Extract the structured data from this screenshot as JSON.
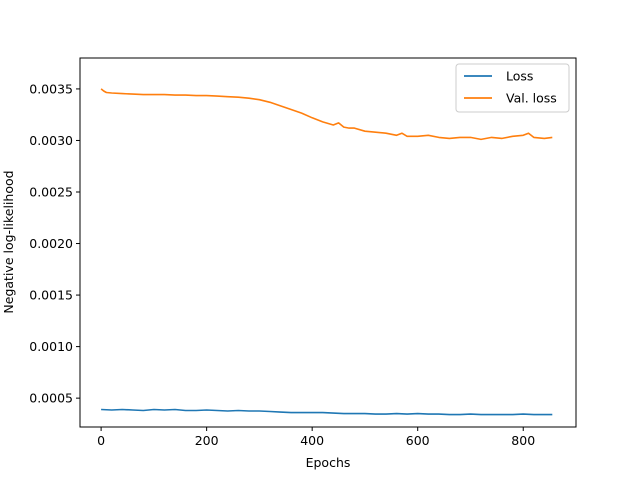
{
  "chart_data": {
    "type": "line",
    "title": "",
    "xlabel": "Epochs",
    "ylabel": "Negative log-likelihood",
    "xlim": [
      -40,
      900
    ],
    "ylim": [
      0.00022,
      0.0038
    ],
    "xticks": [
      0,
      200,
      400,
      600,
      800
    ],
    "xtick_labels": [
      "0",
      "200",
      "400",
      "600",
      "800"
    ],
    "yticks": [
      0.0005,
      0.001,
      0.0015,
      0.002,
      0.0025,
      0.003,
      0.0035
    ],
    "ytick_labels": [
      "0.0005",
      "0.0010",
      "0.0015",
      "0.0020",
      "0.0025",
      "0.0030",
      "0.0035"
    ],
    "grid": false,
    "legend_position": "top-right",
    "series": [
      {
        "name": "Loss",
        "color": "#1f77b4",
        "x": [
          0,
          20,
          40,
          60,
          80,
          100,
          120,
          140,
          160,
          180,
          200,
          220,
          240,
          260,
          280,
          300,
          320,
          340,
          360,
          380,
          400,
          420,
          440,
          460,
          480,
          500,
          520,
          540,
          560,
          580,
          600,
          620,
          640,
          660,
          680,
          700,
          720,
          740,
          760,
          780,
          800,
          820,
          840,
          855
        ],
        "y": [
          0.00039,
          0.000385,
          0.00039,
          0.000385,
          0.00038,
          0.00039,
          0.000385,
          0.00039,
          0.00038,
          0.00038,
          0.000385,
          0.00038,
          0.000375,
          0.00038,
          0.000375,
          0.000375,
          0.00037,
          0.000365,
          0.00036,
          0.00036,
          0.00036,
          0.00036,
          0.000355,
          0.00035,
          0.00035,
          0.00035,
          0.000345,
          0.000345,
          0.00035,
          0.000345,
          0.00035,
          0.000345,
          0.000345,
          0.00034,
          0.00034,
          0.000345,
          0.00034,
          0.00034,
          0.00034,
          0.00034,
          0.000345,
          0.00034,
          0.00034,
          0.00034
        ]
      },
      {
        "name": "Val. loss",
        "color": "#ff7f0e",
        "x": [
          0,
          5,
          10,
          20,
          40,
          60,
          80,
          100,
          120,
          140,
          160,
          180,
          200,
          220,
          240,
          260,
          280,
          300,
          320,
          340,
          360,
          380,
          400,
          420,
          440,
          450,
          460,
          470,
          480,
          500,
          520,
          540,
          560,
          570,
          580,
          600,
          620,
          640,
          660,
          680,
          700,
          720,
          740,
          760,
          780,
          800,
          810,
          820,
          840,
          855
        ],
        "y": [
          0.0035,
          0.00348,
          0.003465,
          0.00346,
          0.003455,
          0.00345,
          0.003445,
          0.003445,
          0.003445,
          0.00344,
          0.00344,
          0.003435,
          0.003435,
          0.00343,
          0.003425,
          0.00342,
          0.00341,
          0.003395,
          0.00337,
          0.003335,
          0.0033,
          0.003265,
          0.00322,
          0.00318,
          0.00315,
          0.00317,
          0.00313,
          0.00312,
          0.00312,
          0.00309,
          0.00308,
          0.00307,
          0.00305,
          0.00307,
          0.00304,
          0.00304,
          0.00305,
          0.00303,
          0.00302,
          0.00303,
          0.00303,
          0.00301,
          0.00303,
          0.00302,
          0.00304,
          0.00305,
          0.00307,
          0.00303,
          0.00302,
          0.00303
        ]
      }
    ]
  }
}
